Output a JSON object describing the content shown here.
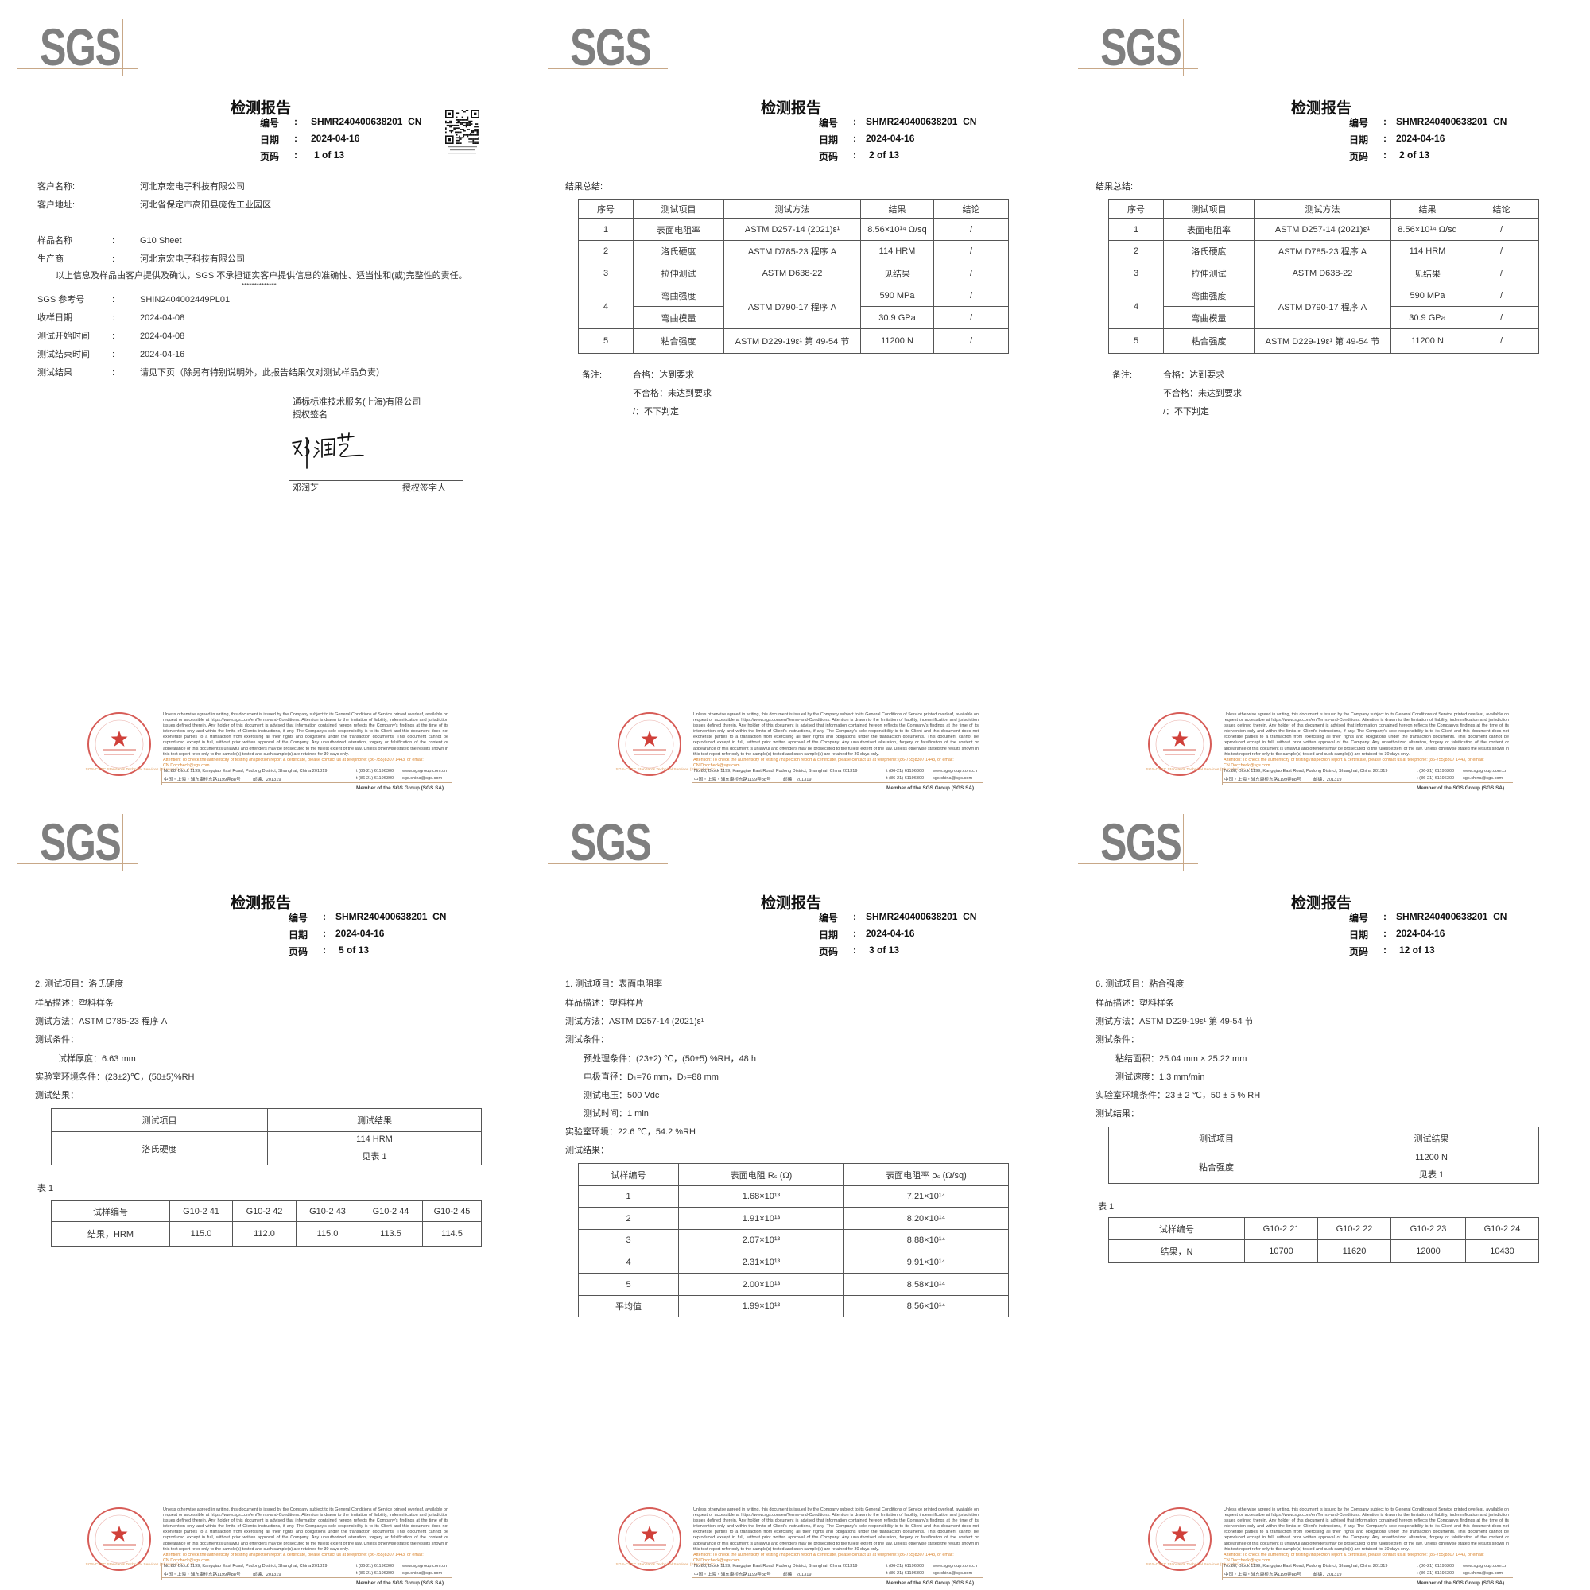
{
  "logo": "SGS",
  "document": {
    "title": "检测报告",
    "report_no_label": "编号",
    "date_label": "日期",
    "page_label": "页码",
    "colon": ":",
    "report_no": "SHMR240400638201_CN",
    "date": "2024-04-16"
  },
  "pages": [
    {
      "page_no": "1 of 13"
    },
    {
      "page_no": "2 of 13"
    },
    {
      "page_no": "2 of 13"
    },
    {
      "page_no": "5 of 13"
    },
    {
      "page_no": "3 of 13"
    },
    {
      "page_no": "12 of 13"
    }
  ],
  "cover": {
    "client_name_label": "客户名称:",
    "client_name": "河北京宏电子科技有限公司",
    "client_address_label": "客户地址:",
    "client_address": "河北省保定市高阳县庞佐工业园区",
    "fields": [
      {
        "label": "样品名称",
        "value": "G10 Sheet"
      },
      {
        "label": "生产商",
        "value": "河北京宏电子科技有限公司"
      }
    ],
    "disclaimer": "以上信息及样品由客户提供及确认，SGS 不承担证实客户提供信息的准确性、适当性和(或)完整性的责任。",
    "stars": "**************",
    "fields2": [
      {
        "label": "SGS 参考号",
        "value": "SHIN2404002449PL01"
      },
      {
        "label": "收样日期",
        "value": "2024-04-08"
      },
      {
        "label": "测试开始时间",
        "value": "2024-04-08"
      },
      {
        "label": "测试结束时间",
        "value": "2024-04-16"
      },
      {
        "label": "测试结果",
        "value": "请见下页（除另有特别说明外，此报告结果仅对测试样品负责）"
      }
    ],
    "company": "通标标准技术服务(上海)有限公司",
    "signature_label": "授权签名",
    "signature": "邓润芝",
    "signer_name": "邓润芝",
    "signer_title": "授权签字人"
  },
  "summary": {
    "heading": "结果总结:",
    "headers": [
      "序号",
      "测试项目",
      "测试方法",
      "结果",
      "结论"
    ],
    "rows": [
      {
        "no": "1",
        "item": "表面电阻率",
        "method": "ASTM D257-14 (2021)ε¹",
        "result": "8.56×10¹⁴ Ω/sq",
        "conclusion": "/"
      },
      {
        "no": "2",
        "item": "洛氏硬度",
        "method": "ASTM D785-23 程序 A",
        "result": "114 HRM",
        "conclusion": "/"
      },
      {
        "no": "3",
        "item": "拉伸测试",
        "method": "ASTM D638-22",
        "result": "见结果",
        "conclusion": "/"
      },
      {
        "no": "4",
        "items": [
          "弯曲强度",
          "弯曲模量"
        ],
        "method": "ASTM D790-17 程序 A",
        "results": [
          "590 MPa",
          "30.9 GPa"
        ],
        "conclusions": [
          "/",
          "/"
        ]
      },
      {
        "no": "5",
        "item": "粘合强度",
        "method": "ASTM D229-19ε¹ 第 49-54 节",
        "result": "11200 N",
        "conclusion": "/"
      }
    ],
    "notes_label": "备注:",
    "notes": [
      "合格：达到要求",
      "不合格：未达到要求",
      "/：不下判定"
    ]
  },
  "hardness": {
    "lines": [
      "2. 测试项目：洛氏硬度",
      "样品描述：塑料样条",
      "测试方法：ASTM D785-23 程序 A",
      "测试条件：",
      "试样厚度：6.63 mm",
      "实验室环境条件：(23±2)℃，(50±5)%RH",
      "测试结果："
    ],
    "result_table": {
      "headers": [
        "测试项目",
        "测试结果"
      ],
      "item": "洛氏硬度",
      "result": "114 HRM",
      "note": "见表 1"
    },
    "table1_label": "表 1",
    "table1": {
      "row_headers": [
        "试样编号",
        "结果，HRM"
      ],
      "specimens": [
        "G10-2 41",
        "G10-2 42",
        "G10-2 43",
        "G10-2 44",
        "G10-2 45"
      ],
      "values": [
        "115.0",
        "112.0",
        "115.0",
        "113.5",
        "114.5"
      ]
    }
  },
  "resistivity": {
    "lines": [
      "1.   测试项目：表面电阻率",
      "样品描述：塑料样片",
      "测试方法：ASTM D257-14 (2021)ε¹",
      "测试条件：",
      "预处理条件：(23±2) ℃，(50±5) %RH，48 h",
      "电极直径：D₁=76 mm，D₂=88 mm",
      "测试电压：500 Vdc",
      "测试时间：1 min",
      "实验室环境：22.6 ℃，54.2 %RH",
      "测试结果："
    ],
    "headers": [
      "试样编号",
      "表面电阻 Rₛ (Ω)",
      "表面电阻率 ρₛ (Ω/sq)"
    ],
    "rows": [
      [
        "1",
        "1.68×10¹³",
        "7.21×10¹⁴"
      ],
      [
        "2",
        "1.91×10¹³",
        "8.20×10¹⁴"
      ],
      [
        "3",
        "2.07×10¹³",
        "8.88×10¹⁴"
      ],
      [
        "4",
        "2.31×10¹³",
        "9.91×10¹⁴"
      ],
      [
        "5",
        "2.00×10¹³",
        "8.58×10¹⁴"
      ],
      [
        "平均值",
        "1.99×10¹³",
        "8.56×10¹⁴"
      ]
    ]
  },
  "bond": {
    "lines": [
      "6. 测试项目：粘合强度",
      "样品描述：塑料样条",
      "测试方法：ASTM D229-19ε¹ 第 49-54 节",
      "测试条件：",
      "粘结面积：25.04 mm × 25.22 mm",
      "测试速度：1.3 mm/min",
      "实验室环境条件：23 ± 2 ℃，50 ± 5 % RH",
      "测试结果："
    ],
    "result_table": {
      "headers": [
        "测试项目",
        "测试结果"
      ],
      "item": "粘合强度",
      "result": "11200 N",
      "note": "见表 1"
    },
    "table1_label": "表 1",
    "table1": {
      "row_headers": [
        "试样编号",
        "结果，N"
      ],
      "specimens": [
        "G10-2 21",
        "G10-2 22",
        "G10-2 23",
        "G10-2 24"
      ],
      "values": [
        "10700",
        "11620",
        "12000",
        "10430"
      ]
    }
  },
  "footer": {
    "disclaimer": "Unless otherwise agreed in writing, this document is issued by the Company subject to its General Conditions of Service printed overleaf, available on request or accessible at https://www.sgs.com/en/Terms-and-Conditions. Attention is drawn to the limitation of liability, indemnification and jurisdiction issues defined therein. Any holder of this document is advised that information contained hereon reflects the Company's findings at the time of its intervention only and within the limits of Client's instructions, if any. The Company's sole responsibility is to its Client and this document does not exonerate parties to a transaction from exercising all their rights and obligations under the transaction documents. This document cannot be reproduced except in full, without prior written approval of the Company. Any unauthorized alteration, forgery or falsification of the content or appearance of this document is unlawful and offenders may be prosecuted to the fullest extent of the law. Unless otherwise stated the results shown in this test report refer only to the sample(s) tested and such sample(s) are retained for 30 days only.",
    "attention": "Attention: To check the authenticity of testing /inspection report & certificate, please contact us at telephone: (86-755)8307 1443, or email: CN.Doccheck@sgs.com",
    "address_en": "No.88, Block 1199, Kangqiao East Road, Pudong District, Shanghai, China 201319",
    "address_cn": "中国・上海・浦东康桥东路1199弄88号",
    "postcode": "邮编：201319",
    "phone1": "t (86-21) 61196300",
    "phone2": "t (86-21) 61196300",
    "website": "www.sgsgroup.com.cn",
    "email": "sgs.china@sgs.com",
    "member": "Member of the SGS Group (SGS SA)",
    "stamp_text": "检验检测专用章",
    "stamp_caption": "SGS-CSTC Standards Technical Services (Shanghai) Co., Ltd"
  },
  "colors": {
    "logo": "#7f7f7f",
    "logo_rule": "#c8a888",
    "stamp": "#d0403a",
    "attention": "#d9822b"
  }
}
